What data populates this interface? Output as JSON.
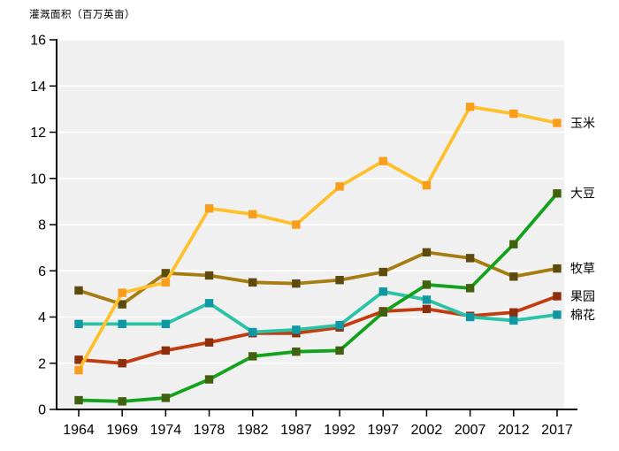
{
  "chart_data": {
    "type": "line",
    "title": "",
    "ylabel": "灌溉面积（百万英亩）",
    "xlabel": "",
    "categories": [
      "1964",
      "1969",
      "1974",
      "1978",
      "1982",
      "1987",
      "1992",
      "1997",
      "2002",
      "2007",
      "2012",
      "2017"
    ],
    "ylim": [
      0,
      16
    ],
    "ytick_step": 2,
    "yticks": [
      0,
      2,
      4,
      6,
      8,
      10,
      12,
      14,
      16
    ],
    "grid": true,
    "legend_position": "right-end-labels",
    "plot_bg_color": "#F0F0F0",
    "gridline_color": "#FFFFFF",
    "axis_color": "#000000",
    "series": [
      {
        "key": "corn",
        "name": "玉米",
        "line_color": "#FEC12B",
        "marker_color": "#F89E1C",
        "values": [
          1.7,
          5.05,
          5.5,
          8.7,
          8.45,
          8.0,
          9.65,
          10.75,
          9.7,
          13.1,
          12.8,
          12.4
        ]
      },
      {
        "key": "soybean",
        "name": "大豆",
        "line_color": "#12A21B",
        "marker_color": "#40610E",
        "values": [
          0.4,
          0.35,
          0.5,
          1.3,
          2.3,
          2.5,
          2.55,
          4.2,
          5.4,
          5.25,
          7.15,
          9.35
        ]
      },
      {
        "key": "hay",
        "name": "牧草",
        "line_color": "#A67C10",
        "marker_color": "#5C4B0C",
        "values": [
          5.15,
          4.55,
          5.9,
          5.8,
          5.5,
          5.45,
          5.6,
          5.95,
          6.8,
          6.55,
          5.75,
          6.1
        ]
      },
      {
        "key": "orchard",
        "name": "果园",
        "line_color": "#C23C12",
        "marker_color": "#8C2D0B",
        "values": [
          2.15,
          2.0,
          2.55,
          2.9,
          3.3,
          3.3,
          3.55,
          4.25,
          4.35,
          4.05,
          4.2,
          4.9
        ]
      },
      {
        "key": "cotton",
        "name": "棉花",
        "line_color": "#2BC3A5",
        "marker_color": "#0F97A3",
        "values": [
          3.7,
          3.7,
          3.7,
          4.6,
          3.35,
          3.45,
          3.65,
          5.1,
          4.75,
          4.0,
          3.85,
          4.1
        ]
      }
    ],
    "draw_order": [
      "orchard",
      "cotton",
      "hay",
      "soybean",
      "corn"
    ]
  }
}
